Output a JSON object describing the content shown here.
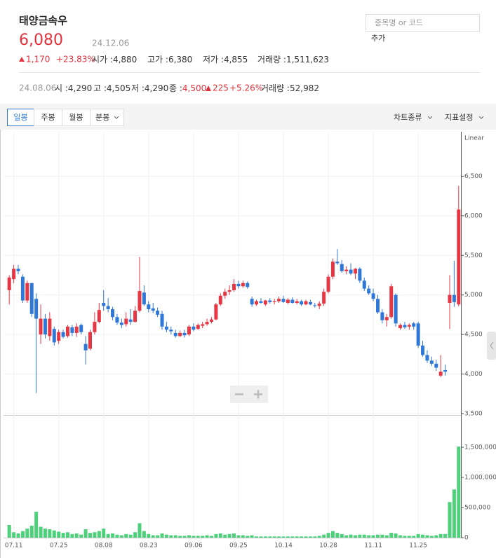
{
  "header": {
    "name": "태양금속우",
    "price": "6,080",
    "date": "24.12.06",
    "change": "1,170",
    "change_pct": "+23.83%",
    "stats": [
      {
        "label": "시가 :",
        "value": "4,880"
      },
      {
        "label": "고가 :",
        "value": "6,380"
      },
      {
        "label": "저가 :",
        "value": "4,855"
      },
      {
        "label": "거래량 :",
        "value": "1,511,623"
      }
    ]
  },
  "search": {
    "placeholder": "종목명 or 코드",
    "add": "추가"
  },
  "compare": {
    "date": "24.08.06",
    "stats": [
      {
        "label": "시 :",
        "value": "4,290"
      },
      {
        "label": "고 :",
        "value": "4,505"
      },
      {
        "label": "저 :",
        "value": "4,290"
      },
      {
        "label": "종 :",
        "value": "4,500"
      }
    ],
    "change": "225",
    "change_pct": "+5.26%",
    "volume_label": "거래량 :",
    "volume": "52,982"
  },
  "toolbar": {
    "tabs": [
      "일봉",
      "주봉",
      "월봉",
      "분봉"
    ],
    "right": [
      "차트종류",
      "지표설정"
    ]
  },
  "chart_data": {
    "type": "candlestick",
    "scale_label": "Linear",
    "grid": true,
    "up_color": "#e63744",
    "down_color": "#2f78d8",
    "volume_color": "#4fd07a",
    "x": [
      null,
      "07.11",
      null,
      null,
      null,
      null,
      null,
      null,
      null,
      null,
      null,
      "07.25",
      null,
      null,
      null,
      null,
      null,
      null,
      null,
      null,
      null,
      "08.08",
      null,
      null,
      null,
      null,
      null,
      null,
      null,
      null,
      null,
      "08.23",
      null,
      null,
      null,
      null,
      null,
      null,
      null,
      null,
      null,
      "09.06",
      null,
      null,
      null,
      null,
      null,
      null,
      null,
      null,
      null,
      "09.25",
      null,
      null,
      null,
      null,
      null,
      null,
      null,
      null,
      null,
      "10.14",
      null,
      null,
      null,
      null,
      null,
      null,
      null,
      null,
      null,
      "10.28",
      null,
      null,
      null,
      null,
      null,
      null,
      null,
      null,
      null,
      "11.11",
      null,
      null,
      null,
      null,
      null,
      null,
      null,
      null,
      null,
      "11.25",
      null,
      null,
      null,
      null,
      null,
      null,
      null,
      null,
      null
    ],
    "open": [
      5060,
      5200,
      5330,
      5230,
      4930,
      5150,
      4950,
      4500,
      4700,
      4480,
      4570,
      4420,
      4530,
      4480,
      4590,
      4520,
      4620,
      4380,
      4320,
      4530,
      4660,
      4900,
      4860,
      4820,
      4720,
      4650,
      4630,
      4690,
      4660,
      4800,
      5030,
      4880,
      4830,
      4800,
      4760,
      4600,
      4560,
      4520,
      4480,
      4520,
      4500,
      4600,
      4570,
      4610,
      4630,
      4660,
      4690,
      4880,
      4990,
      5040,
      5060,
      5140,
      5110,
      5150,
      4950,
      4880,
      4920,
      4880,
      4930,
      4910,
      4920,
      4950,
      4900,
      4940,
      4900,
      4920,
      4880,
      4910,
      4870,
      4860,
      4890,
      5040,
      5230,
      5420,
      5390,
      5300,
      5320,
      5270,
      5330,
      5180,
      5080,
      5020,
      4950,
      4780,
      4680,
      4720,
      5000,
      4580,
      4620,
      4600,
      4640,
      4640,
      4360,
      4240,
      4170,
      4130,
      3980,
      4050,
      4900,
      5000,
      4880
    ],
    "high": [
      5250,
      5380,
      5380,
      5260,
      5180,
      5150,
      5020,
      4880,
      4760,
      4780,
      4600,
      4560,
      4560,
      4620,
      4620,
      4640,
      4640,
      4480,
      4560,
      4780,
      4900,
      5060,
      4960,
      4850,
      4760,
      4700,
      4780,
      4820,
      4860,
      5480,
      5120,
      4920,
      4900,
      4840,
      4800,
      4660,
      4600,
      4560,
      4550,
      4560,
      4620,
      4640,
      4640,
      4660,
      4700,
      4720,
      4900,
      5020,
      5080,
      5120,
      5200,
      5180,
      5180,
      5170,
      4980,
      4940,
      4960,
      4940,
      4960,
      4950,
      4980,
      4990,
      4960,
      4970,
      4950,
      4940,
      4940,
      4940,
      4900,
      4920,
      5080,
      5260,
      5460,
      5580,
      5440,
      5360,
      5400,
      5340,
      5350,
      5220,
      5120,
      5080,
      5000,
      4820,
      4760,
      5140,
      5020,
      4640,
      4660,
      4640,
      4660,
      4660,
      4420,
      4300,
      4220,
      4180,
      4240,
      4120,
      5250,
      5430,
      6380
    ],
    "low": [
      4880,
      5150,
      5260,
      4900,
      4900,
      4720,
      3760,
      4380,
      4450,
      4420,
      4360,
      4380,
      4450,
      4460,
      4480,
      4470,
      4500,
      4120,
      4300,
      4500,
      4640,
      4800,
      4780,
      4680,
      4620,
      4580,
      4600,
      4620,
      4650,
      4780,
      4860,
      4780,
      4770,
      4720,
      4560,
      4530,
      4500,
      4460,
      4470,
      4460,
      4480,
      4540,
      4560,
      4580,
      4610,
      4640,
      4680,
      4860,
      4950,
      5000,
      5040,
      5080,
      5090,
      5080,
      4850,
      4860,
      4890,
      4860,
      4890,
      4880,
      4900,
      4900,
      4880,
      4890,
      4880,
      4860,
      4870,
      4870,
      4840,
      4820,
      4860,
      5020,
      5200,
      5380,
      5280,
      5260,
      5250,
      5200,
      5150,
      5050,
      5000,
      4920,
      4760,
      4640,
      4600,
      4700,
      4600,
      4560,
      4570,
      4560,
      4560,
      4330,
      4220,
      4140,
      4100,
      4040,
      3960,
      3980,
      4570,
      4850,
      4855
    ],
    "close": [
      5220,
      5330,
      5300,
      4930,
      5150,
      4760,
      4700,
      4700,
      4500,
      4700,
      4400,
      4530,
      4470,
      4600,
      4520,
      4600,
      4530,
      4300,
      4530,
      4660,
      4810,
      4860,
      4820,
      4720,
      4650,
      4620,
      4700,
      4660,
      4800,
      5050,
      4880,
      4820,
      4800,
      4750,
      4600,
      4560,
      4540,
      4480,
      4520,
      4490,
      4600,
      4560,
      4620,
      4630,
      4660,
      4690,
      4880,
      4990,
      5040,
      5060,
      5140,
      5110,
      5150,
      5100,
      4880,
      4920,
      4900,
      4930,
      4910,
      4920,
      4950,
      4910,
      4940,
      4900,
      4920,
      4880,
      4920,
      4880,
      4860,
      4890,
      5040,
      5230,
      5420,
      5400,
      5300,
      5320,
      5270,
      5330,
      5180,
      5080,
      5020,
      4950,
      4780,
      4680,
      4720,
      5110,
      4640,
      4620,
      4590,
      4620,
      4600,
      4360,
      4240,
      4170,
      4130,
      4080,
      4030,
      4030,
      5000,
      4910,
      6080
    ],
    "volume": [
      210000,
      90000,
      70000,
      110000,
      150000,
      200000,
      430000,
      180000,
      150000,
      140000,
      120000,
      100000,
      80000,
      90000,
      60000,
      70000,
      50000,
      140000,
      80000,
      90000,
      110000,
      150000,
      60000,
      70000,
      50000,
      40000,
      60000,
      50000,
      90000,
      240000,
      110000,
      60000,
      40000,
      40000,
      70000,
      50000,
      40000,
      40000,
      30000,
      30000,
      40000,
      30000,
      30000,
      30000,
      40000,
      30000,
      60000,
      70000,
      50000,
      60000,
      70000,
      40000,
      40000,
      30000,
      40000,
      20000,
      20000,
      20000,
      20000,
      20000,
      20000,
      20000,
      20000,
      20000,
      20000,
      20000,
      20000,
      20000,
      20000,
      30000,
      50000,
      80000,
      110000,
      80000,
      60000,
      40000,
      50000,
      40000,
      50000,
      50000,
      40000,
      40000,
      50000,
      50000,
      40000,
      80000,
      70000,
      40000,
      30000,
      30000,
      30000,
      60000,
      50000,
      40000,
      30000,
      40000,
      60000,
      60000,
      590000,
      800000,
      1511623
    ],
    "ylim": [
      3500,
      7000
    ],
    "yticks": [
      {
        "value": 3500,
        "label": "3,500"
      },
      {
        "value": 4000,
        "label": "4,000"
      },
      {
        "value": 4500,
        "label": "4,500"
      },
      {
        "value": 5000,
        "label": "5,000"
      },
      {
        "value": 5500,
        "label": "5,500"
      },
      {
        "value": 6000,
        "label": "6,000"
      },
      {
        "value": 6500,
        "label": "6,500"
      }
    ],
    "volume_ylim": [
      0,
      2000000
    ],
    "volume_yticks": [
      0,
      {
        "value": 500000,
        "label": "500,000"
      },
      {
        "value": 1000000,
        "label": "1,000,000"
      },
      {
        "value": 1500000,
        "label": "1,500,000"
      }
    ]
  }
}
